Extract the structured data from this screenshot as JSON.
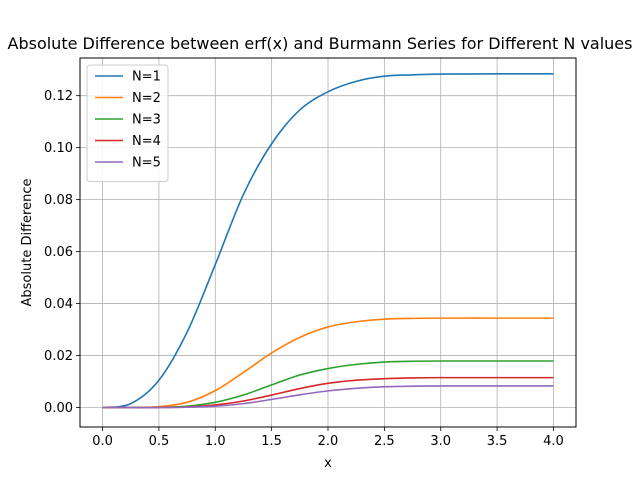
{
  "chart_data": {
    "type": "line",
    "title": "Absolute Difference between erf(x) and Burmann Series for Different N values",
    "xlabel": "x",
    "ylabel": "Absolute Difference",
    "xlim": [
      -0.2,
      4.2
    ],
    "ylim": [
      -0.0075,
      0.1345
    ],
    "xticks": [
      "0.0",
      "0.5",
      "1.0",
      "1.5",
      "2.0",
      "2.5",
      "3.0",
      "3.5",
      "4.0"
    ],
    "yticks": [
      "0.00",
      "0.02",
      "0.04",
      "0.06",
      "0.08",
      "0.10",
      "0.12"
    ],
    "grid": true,
    "legend_position": "top-left",
    "x": [
      0.0,
      0.25,
      0.5,
      0.75,
      1.0,
      1.25,
      1.5,
      1.75,
      2.0,
      2.25,
      2.5,
      2.75,
      3.0,
      3.5,
      4.0
    ],
    "series": [
      {
        "name": "N=1",
        "color": "#1f77b4",
        "values": [
          0.0,
          0.0015,
          0.0105,
          0.029,
          0.055,
          0.082,
          0.1015,
          0.1145,
          0.1215,
          0.1255,
          0.1275,
          0.128,
          0.1283,
          0.1284,
          0.1284
        ]
      },
      {
        "name": "N=2",
        "color": "#ff7f0e",
        "values": [
          0.0,
          0.0,
          0.0003,
          0.002,
          0.0065,
          0.0135,
          0.021,
          0.027,
          0.031,
          0.033,
          0.034,
          0.0343,
          0.0344,
          0.0344,
          0.0344
        ]
      },
      {
        "name": "N=3",
        "color": "#2ca02c",
        "values": [
          0.0,
          0.0,
          0.0,
          0.0005,
          0.002,
          0.0048,
          0.0087,
          0.0125,
          0.015,
          0.0166,
          0.0175,
          0.0178,
          0.0179,
          0.0179,
          0.0179
        ]
      },
      {
        "name": "N=4",
        "color": "#d62728",
        "values": [
          0.0,
          0.0,
          0.0,
          0.0002,
          0.001,
          0.0025,
          0.0048,
          0.0073,
          0.0093,
          0.0105,
          0.0111,
          0.0114,
          0.0115,
          0.0115,
          0.0115
        ]
      },
      {
        "name": "N=5",
        "color": "#9467bd",
        "values": [
          0.0,
          0.0,
          0.0,
          0.0001,
          0.0005,
          0.0015,
          0.0031,
          0.0049,
          0.0064,
          0.0074,
          0.008,
          0.0082,
          0.0083,
          0.0083,
          0.0083
        ]
      }
    ]
  }
}
